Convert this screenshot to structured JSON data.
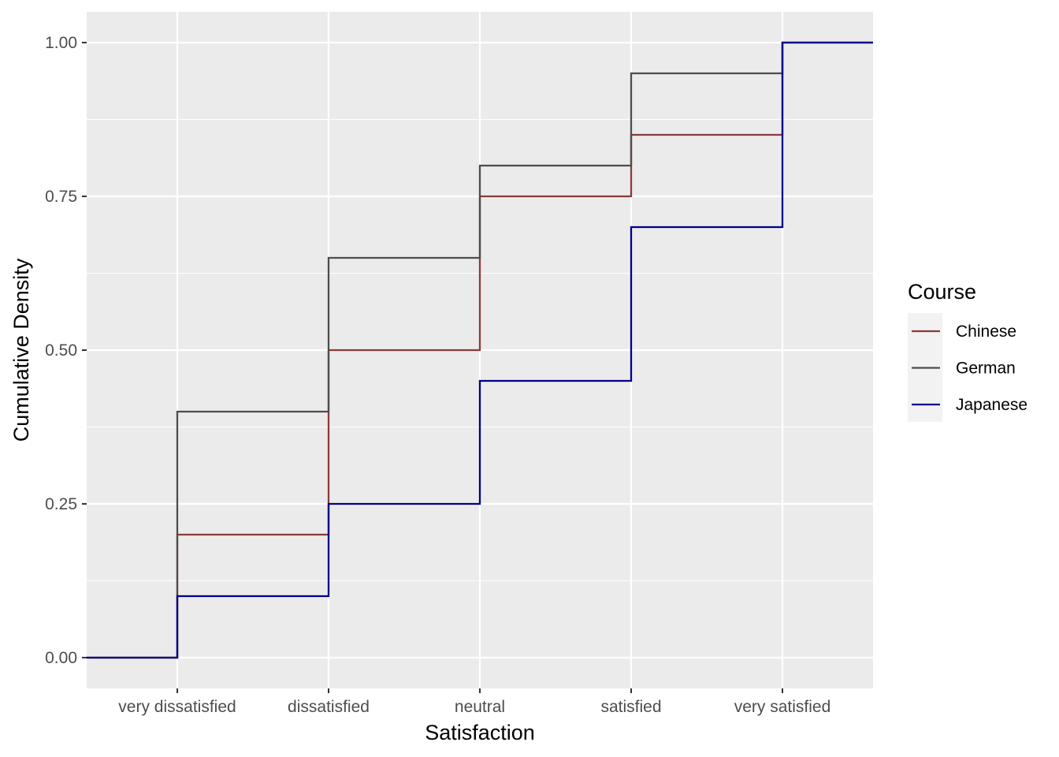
{
  "chart_data": {
    "type": "line",
    "subtype": "step (empirical cumulative distribution)",
    "title": "",
    "xlabel": "Satisfaction",
    "ylabel": "Cumulative Density",
    "categories": [
      "very dissatisfied",
      "dissatisfied",
      "neutral",
      "satisfied",
      "very satisfied"
    ],
    "y_ticks": [
      "0.00",
      "0.25",
      "0.50",
      "0.75",
      "1.00"
    ],
    "ylim": [
      0,
      1
    ],
    "grid": true,
    "background": "#ebebeb",
    "legend": {
      "title": "Course",
      "placement": "right"
    },
    "series": [
      {
        "name": "Chinese",
        "color": "#8b3a3a",
        "values": [
          0.2,
          0.5,
          0.75,
          0.85,
          1.0
        ]
      },
      {
        "name": "German",
        "color": "#4d4d4d",
        "values": [
          0.4,
          0.65,
          0.8,
          0.95,
          1.0
        ]
      },
      {
        "name": "Japanese",
        "color": "#00008b",
        "values": [
          0.1,
          0.25,
          0.45,
          0.7,
          1.0
        ]
      }
    ]
  }
}
